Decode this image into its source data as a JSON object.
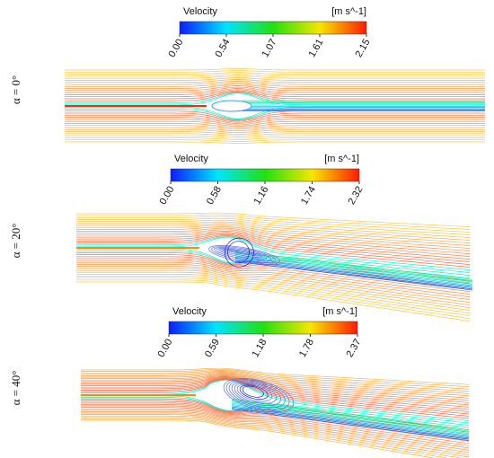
{
  "panels": [
    {
      "label": "α = 0°",
      "colorbar": {
        "title": "Velocity",
        "units": "[m s^-1]",
        "ticks": [
          "0.00",
          "0.54",
          "1.07",
          "1.61",
          "2.15"
        ]
      }
    },
    {
      "label": "α = 20°",
      "colorbar": {
        "title": "Velocity",
        "units": "[m s^-1]",
        "ticks": [
          "0.00",
          "0.58",
          "1.16",
          "1.74",
          "2.32"
        ]
      }
    },
    {
      "label": "α = 40°",
      "colorbar": {
        "title": "Velocity",
        "units": "[m s^-1]",
        "ticks": [
          "0.00",
          "0.59",
          "1.18",
          "1.78",
          "2.37"
        ]
      }
    }
  ]
}
